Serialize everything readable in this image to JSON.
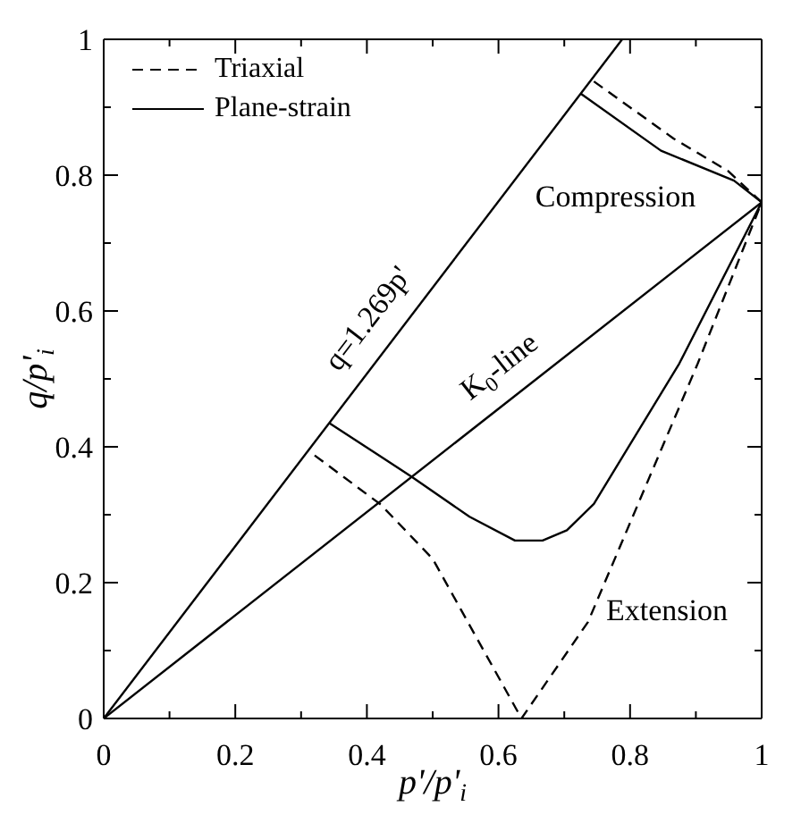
{
  "chart_data": {
    "type": "line",
    "xlabel": "p'/p'$_{i}$",
    "ylabel": "q/p'$_{i}$",
    "xlim": [
      0,
      1
    ],
    "ylim": [
      0,
      1
    ],
    "xticks": [
      0,
      {
        "value": 0.1,
        "label": null
      },
      0.2,
      {
        "value": 0.3,
        "label": null
      },
      0.4,
      {
        "value": 0.5,
        "label": null
      },
      0.6,
      {
        "value": 0.7,
        "label": null
      },
      0.8,
      {
        "value": 0.9,
        "label": null
      },
      1
    ],
    "yticks": [
      0,
      {
        "value": 0.1,
        "label": null
      },
      0.2,
      {
        "value": 0.3,
        "label": null
      },
      0.4,
      {
        "value": 0.5,
        "label": null
      },
      0.6,
      {
        "value": 0.7,
        "label": null
      },
      0.8,
      {
        "value": 0.9,
        "label": null
      },
      1
    ],
    "legend": "top left",
    "marker": "none",
    "series": [
      {
        "name": "Triaxial",
        "color": "#000000",
        "line_style": "dashed",
        "x": [
          0.745,
          0.866,
          0.949,
          1,
          0.903,
          0.736,
          0.635,
          0.5,
          0.421,
          0.31
        ],
        "values": [
          0.938,
          0.854,
          0.806,
          0.76,
          0.523,
          0.142,
          0,
          0.235,
          0.315,
          0.395
        ]
      },
      {
        "name": "Plane-strain",
        "color": "#000000",
        "line_style": "solid",
        "x": [
          0.725,
          0.847,
          0.958,
          1,
          0.875,
          0.745,
          0.704,
          0.667,
          0.625,
          0.556,
          0.468,
          0.343
        ],
        "values": [
          0.92,
          0.836,
          0.792,
          0.76,
          0.523,
          0.316,
          0.277,
          0.262,
          0.262,
          0.297,
          0.356,
          0.435
        ]
      },
      {
        "color": "#000000",
        "line_style": "solid",
        "x": [
          0,
          0.788
        ],
        "values": [
          0,
          1
        ]
      },
      {
        "color": "#000000",
        "line_style": "solid",
        "x": [
          0,
          1
        ],
        "values": [
          0,
          0.76
        ]
      }
    ],
    "annotations": [
      "q=1.269p'",
      "K$_{0}$-line",
      "Compression",
      "Extension"
    ]
  }
}
